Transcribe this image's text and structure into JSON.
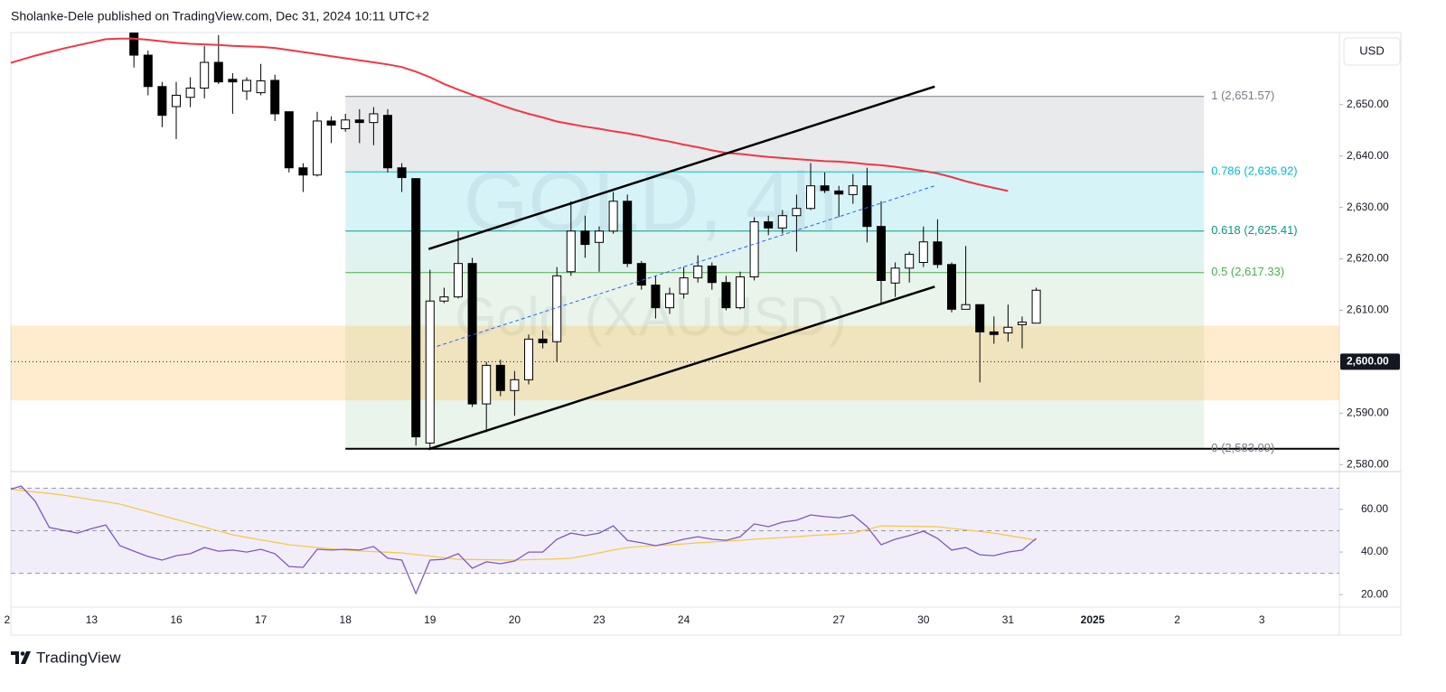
{
  "header": "Sholanke-Dele published on TradingView.com, Dec 31, 2024 10:11 UTC+2",
  "footer": {
    "brand": "TradingView"
  },
  "chart_data": {
    "type": "candlestick",
    "watermark": [
      "GOLD, 4h",
      "Gold (XAUUSD)"
    ],
    "currency": "USD",
    "categories": [
      "2",
      null,
      null,
      null,
      null,
      null,
      "13",
      null,
      null,
      null,
      null,
      null,
      "16",
      null,
      null,
      null,
      null,
      null,
      "17",
      null,
      null,
      null,
      null,
      null,
      "18",
      null,
      null,
      null,
      null,
      null,
      "19",
      null,
      null,
      null,
      null,
      null,
      "20",
      null,
      null,
      null,
      null,
      null,
      "23",
      null,
      null,
      null,
      null,
      null,
      "24",
      null,
      null,
      null,
      null,
      null,
      null,
      null,
      null,
      null,
      null,
      "27",
      null,
      null,
      null,
      null,
      null,
      "30",
      null,
      null,
      null,
      null,
      null,
      "31",
      null,
      null,
      null,
      null,
      null,
      "2025",
      null,
      null,
      null,
      null,
      null,
      "2",
      null,
      null,
      null,
      null,
      null,
      "3",
      null,
      null,
      null,
      null,
      null
    ],
    "open": [
      null,
      null,
      null,
      null,
      null,
      null,
      null,
      null,
      null,
      2663.9,
      2659.6,
      2653.5,
      2649.6,
      2651.4,
      2653.2,
      2658.2,
      2654.9,
      2652.6,
      2652.3,
      2654.7,
      2648.6,
      2637.7,
      2636.3,
      2646.8,
      2645.3,
      2647.0,
      2646.5,
      2647.9,
      2637.7,
      2635.6,
      2584.2,
      2611.8,
      2612.6,
      2619.1,
      2591.8,
      2599.3,
      2594.4,
      2596.5,
      2604.4,
      2603.9,
      2617.5,
      2625.4,
      2623.2,
      2625.4,
      2631.2,
      2619.1,
      2614.9,
      2610.5,
      2613.2,
      2616.3,
      2618.6,
      2615.4,
      2610.5,
      2616.5,
      2627.2,
      2626.0,
      2628.4,
      2629.8,
      2634.2,
      2633.2,
      2632.5,
      2634.2,
      2626.3,
      2615.3,
      2618.2,
      2619.3,
      2623.3,
      2618.9,
      2610.2,
      2611.1,
      2605.8,
      2605.6,
      2607.2,
      2607.5,
      null,
      null,
      null,
      null,
      null,
      null,
      null,
      null,
      null,
      null,
      null,
      null,
      null,
      null,
      null,
      null,
      null,
      null,
      null,
      null,
      null
    ],
    "high": [
      null,
      null,
      null,
      null,
      null,
      null,
      null,
      null,
      null,
      2663.9,
      2660.5,
      2654.4,
      2654.4,
      2655.3,
      2661.4,
      2663.5,
      2656.1,
      2655.3,
      2657.9,
      2655.8,
      2648.6,
      2638.6,
      2648.6,
      2647.7,
      2648.2,
      2649.1,
      2649.5,
      2649.1,
      2638.6,
      2635.6,
      2617.9,
      2614.4,
      2625.4,
      2620.2,
      2600.0,
      2600.4,
      2598.2,
      2605.3,
      2606.1,
      2618.4,
      2631.2,
      2628.4,
      2626.3,
      2633.0,
      2632.5,
      2619.6,
      2616.7,
      2614.4,
      2618.4,
      2620.7,
      2619.3,
      2616.7,
      2617.5,
      2628.1,
      2628.4,
      2629.5,
      2632.5,
      2638.6,
      2636.8,
      2634.2,
      2636.5,
      2637.7,
      2631.2,
      2619.3,
      2621.4,
      2626.3,
      2627.7,
      2619.3,
      2622.5,
      2611.1,
      2608.8,
      2611.1,
      2608.8,
      2614.4,
      null,
      null,
      null,
      null,
      null,
      null,
      null,
      null,
      null,
      null,
      null,
      null,
      null,
      null,
      null,
      null,
      null,
      null,
      null,
      null,
      null
    ],
    "low": [
      null,
      null,
      null,
      null,
      null,
      null,
      null,
      null,
      null,
      2657.2,
      2651.8,
      2645.6,
      2643.3,
      2649.5,
      2651.2,
      2654.0,
      2648.2,
      2650.9,
      2651.8,
      2646.8,
      2636.8,
      2633.0,
      2636.0,
      2642.5,
      2644.7,
      2642.5,
      2642.1,
      2636.8,
      2633.0,
      2583.7,
      2583.3,
      2611.4,
      2612.3,
      2591.2,
      2586.3,
      2593.3,
      2589.5,
      2595.6,
      2602.6,
      2600.0,
      2616.7,
      2620.2,
      2617.5,
      2624.9,
      2618.4,
      2614.0,
      2608.4,
      2609.3,
      2612.3,
      2615.4,
      2614.0,
      2610.0,
      2610.2,
      2615.8,
      2624.6,
      2624.9,
      2621.4,
      2629.5,
      2632.8,
      2628.1,
      2630.7,
      2623.2,
      2611.4,
      2612.6,
      2615.4,
      2618.4,
      2618.2,
      2609.6,
      2610.2,
      2596.0,
      2603.5,
      2603.9,
      2602.6,
      2607.5,
      null,
      null,
      null,
      null,
      null,
      null,
      null,
      null,
      null,
      null,
      null,
      null,
      null,
      null,
      null,
      null,
      null,
      null,
      null,
      null,
      null
    ],
    "close": [
      null,
      null,
      null,
      null,
      null,
      null,
      null,
      null,
      null,
      2659.6,
      2653.5,
      2647.9,
      2651.8,
      2653.2,
      2658.2,
      2654.4,
      2654.4,
      2654.7,
      2654.6,
      2648.2,
      2637.7,
      2636.3,
      2646.8,
      2646.0,
      2647.0,
      2646.5,
      2648.2,
      2637.7,
      2635.8,
      2585.4,
      2611.8,
      2612.6,
      2619.1,
      2591.8,
      2599.3,
      2594.4,
      2596.5,
      2604.4,
      2603.7,
      2616.7,
      2625.4,
      2622.8,
      2625.4,
      2631.2,
      2619.1,
      2614.9,
      2610.5,
      2613.2,
      2616.3,
      2618.6,
      2615.4,
      2610.5,
      2616.5,
      2627.2,
      2626.0,
      2628.4,
      2629.8,
      2634.2,
      2633.3,
      2632.6,
      2634.2,
      2626.3,
      2615.8,
      2618.2,
      2620.9,
      2623.3,
      2618.9,
      2610.2,
      2611.1,
      2605.8,
      2605.3,
      2606.7,
      2607.7,
      2613.9,
      null,
      null,
      null,
      null,
      null,
      null,
      null,
      null,
      null,
      null,
      null,
      null,
      null,
      null,
      null,
      null,
      null,
      null,
      null,
      null,
      null
    ],
    "up_color": "#ffffff",
    "down_color": "#000000",
    "ylim": [
      2579,
      2664
    ],
    "yticks": [
      {
        "value": 2580,
        "label": "2,580.00"
      },
      {
        "value": 2590,
        "label": "2,590.00"
      },
      {
        "value": 2610,
        "label": "2,610.00"
      },
      {
        "value": 2620,
        "label": "2,620.00"
      },
      {
        "value": 2630,
        "label": "2,630.00"
      },
      {
        "value": 2640,
        "label": "2,640.00"
      },
      {
        "value": 2650,
        "label": "2,650.00"
      }
    ],
    "last_price": {
      "value": 2600,
      "label": "2,600.00"
    },
    "ma": {
      "color": "#f23645",
      "values": [
        2657.9,
        2658.7,
        2659.5,
        2660.2,
        2660.9,
        2661.5,
        2662.1,
        2662.7,
        2662.8,
        2662.8,
        2662.6,
        2662.3,
        2662.0,
        2661.8,
        2661.7,
        2661.6,
        2661.4,
        2661.3,
        2661.2,
        2661.0,
        2660.6,
        2660.2,
        2659.8,
        2659.4,
        2659.0,
        2658.6,
        2658.2,
        2657.8,
        2657.3,
        2656.4,
        2655.3,
        2654.0,
        2652.9,
        2651.9,
        2650.9,
        2649.9,
        2649.0,
        2648.2,
        2647.5,
        2646.7,
        2646.2,
        2645.7,
        2645.3,
        2644.8,
        2644.4,
        2643.9,
        2643.3,
        2642.8,
        2642.2,
        2641.7,
        2641.1,
        2640.6,
        2640.4,
        2640.1,
        2639.8,
        2639.6,
        2639.4,
        2639.2,
        2639.0,
        2638.9,
        2638.7,
        2638.4,
        2638.2,
        2637.9,
        2637.5,
        2637.1,
        2636.6,
        2635.9,
        2635.1,
        2634.4,
        2633.8,
        2633.2,
        null,
        null,
        null,
        null,
        null,
        null,
        null,
        null,
        null,
        null,
        null,
        null,
        null,
        null,
        null,
        null,
        null,
        null,
        null,
        null,
        null,
        null,
        null
      ]
    },
    "fib": {
      "x": [
        24,
        84.9
      ],
      "extend_color": "#000000",
      "levels": [
        {
          "value": 2651.57,
          "label": "1 (2,651.57)",
          "color": "#787b86",
          "fill": "rgba(120,123,134,0.16)"
        },
        {
          "value": 2636.92,
          "label": "0.786 (2,636.92)",
          "color": "#00bcd4",
          "fill": "rgba(0,188,212,0.16)"
        },
        {
          "value": 2625.41,
          "label": "0.618 (2,625.41)",
          "color": "#089981",
          "fill": "rgba(8,153,129,0.12)"
        },
        {
          "value": 2617.33,
          "label": "0.5 (2,617.33)",
          "color": "#4caf50",
          "fill": "rgba(76,175,80,0.12)"
        },
        {
          "value": 2583.09,
          "label": "0 (2,583.09)",
          "color": "#787b86",
          "fill": null
        }
      ]
    },
    "zone": {
      "y": [
        2592.5,
        2607.0
      ],
      "color": "rgba(255,183,77,0.28)"
    },
    "trendlines": [
      {
        "x": [
          29.9,
          65.8
        ],
        "y": [
          2621.9,
          2653.5
        ],
        "color": "#000000",
        "dashed": false
      },
      {
        "x": [
          29.9,
          65.8
        ],
        "y": [
          2583.0,
          2614.6
        ],
        "color": "#000000",
        "dashed": false
      },
      {
        "x": [
          30.5,
          65.8
        ],
        "y": [
          2603.0,
          2634.2
        ],
        "color": "#2962ff",
        "dashed": true
      }
    ],
    "rsi": {
      "ylim": [
        15,
        76.5
      ],
      "yticks": [
        {
          "value": 20,
          "label": "20.00"
        },
        {
          "value": 40,
          "label": "40.00"
        },
        {
          "value": 60,
          "label": "60.00"
        }
      ],
      "bands": [
        70,
        50,
        30
      ],
      "band_color": "rgba(126,87,194,0.1)",
      "series": [
        {
          "color": "#7e57c2",
          "values": [
            68.9,
            71.0,
            63.8,
            51.5,
            50.2,
            48.9,
            51.0,
            52.7,
            43.0,
            40.4,
            37.9,
            36.2,
            38.3,
            39.2,
            42.1,
            40.4,
            40.9,
            40.0,
            41.3,
            39.2,
            33.2,
            32.8,
            41.3,
            40.9,
            41.3,
            40.9,
            42.6,
            37.1,
            36.2,
            20.5,
            36.2,
            36.6,
            39.2,
            32.4,
            35.4,
            34.5,
            35.8,
            40.0,
            40.0,
            46.0,
            48.9,
            47.7,
            48.9,
            52.3,
            45.5,
            44.3,
            43.0,
            44.3,
            46.0,
            47.2,
            46.0,
            45.5,
            47.2,
            53.2,
            51.9,
            54.0,
            54.9,
            57.4,
            56.6,
            56.1,
            57.4,
            51.9,
            43.4,
            46.0,
            47.7,
            49.8,
            46.4,
            40.9,
            42.1,
            38.7,
            38.3,
            40.0,
            40.9,
            46.4,
            null,
            null,
            null,
            null,
            null,
            null,
            null,
            null,
            null,
            null,
            null,
            null,
            null,
            null,
            null,
            null,
            null,
            null,
            null,
            null,
            null
          ]
        },
        {
          "color": "#f7c948",
          "values": [
            69.7,
            68.9,
            68.2,
            67.5,
            66.7,
            65.7,
            64.6,
            63.6,
            62.5,
            60.7,
            58.9,
            57.1,
            55.3,
            53.5,
            51.7,
            49.9,
            48.1,
            46.9,
            45.7,
            44.6,
            43.4,
            42.8,
            42.1,
            41.5,
            40.9,
            40.5,
            40.2,
            39.9,
            39.6,
            38.8,
            38.1,
            37.3,
            36.6,
            36.5,
            36.4,
            36.3,
            36.2,
            36.4,
            36.6,
            36.8,
            37.1,
            38.3,
            39.6,
            40.9,
            42.1,
            42.6,
            43.0,
            43.4,
            43.8,
            44.3,
            44.7,
            45.1,
            45.5,
            46.0,
            46.4,
            46.8,
            47.2,
            47.7,
            48.1,
            48.5,
            48.9,
            50.6,
            52.3,
            52.2,
            52.1,
            52.0,
            51.9,
            51.1,
            50.4,
            49.6,
            48.9,
            47.8,
            46.7,
            45.5,
            null,
            null,
            null,
            null,
            null,
            null,
            null,
            null,
            null,
            null,
            null,
            null,
            null,
            null,
            null,
            null,
            null,
            null,
            null,
            null,
            null
          ]
        }
      ]
    }
  }
}
